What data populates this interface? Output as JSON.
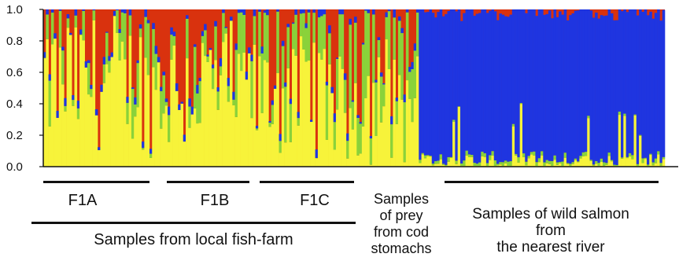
{
  "chart_data": {
    "type": "bar",
    "stacked": true,
    "ylim": [
      0,
      1.0
    ],
    "yticks": [
      "0.0",
      "0.2",
      "0.4",
      "0.6",
      "0.8",
      "1.0"
    ],
    "colors": {
      "yellow": "#f7f33a",
      "green": "#8ad23a",
      "blue": "#1f35e0",
      "red": "#d9320e"
    },
    "segment_order": [
      "yellow",
      "green",
      "blue",
      "red"
    ],
    "groups": [
      {
        "key": "f1a",
        "label": "F1A",
        "n_bars": 39,
        "mean": {
          "yellow": 0.55,
          "green": 0.1,
          "blue": 0.02
        }
      },
      {
        "key": "f1b",
        "label": "F1B",
        "n_bars": 34,
        "mean": {
          "yellow": 0.5,
          "green": 0.15,
          "blue": 0.02
        }
      },
      {
        "key": "f1c",
        "label": "F1C",
        "n_bars": 39,
        "mean": {
          "yellow": 0.5,
          "green": 0.2,
          "blue": 0.02
        }
      },
      {
        "key": "prey",
        "label": "Samples of prey from cod stomachs",
        "n_bars": 33,
        "mean": {
          "yellow": 0.45,
          "green": 0.35,
          "blue": 0.02
        }
      },
      {
        "key": "wild",
        "label": "Samples of wild salmon from the nearest river",
        "n_bars": 95,
        "mean": {
          "yellow": 0.03,
          "green": 0.02,
          "blue": 0.92
        }
      }
    ]
  },
  "labels": {
    "f1a": "F1A",
    "f1b": "F1B",
    "f1c": "F1C",
    "prey_lines": [
      "Samples",
      "of prey",
      "from cod",
      "stomachs"
    ],
    "wild_lines": [
      "Samples of wild salmon",
      "from",
      "the nearest river"
    ],
    "farm": "Samples from local fish-farm"
  }
}
